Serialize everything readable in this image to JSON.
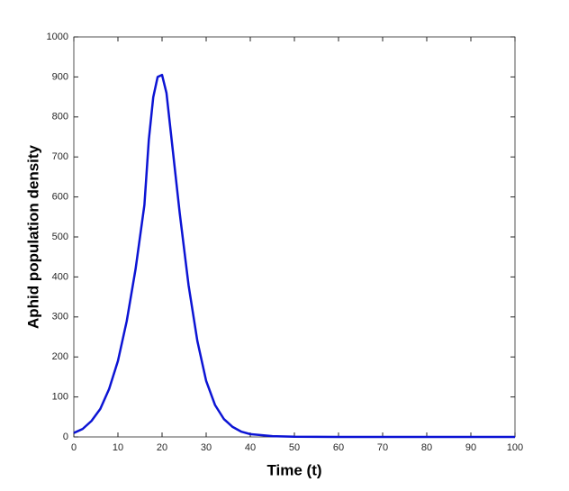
{
  "chart_data": {
    "type": "line",
    "x_label": "Time (t)",
    "y_label": "Aphid population density",
    "x": [
      0,
      2,
      4,
      6,
      8,
      10,
      12,
      14,
      16,
      17,
      18,
      19,
      20,
      21,
      22,
      24,
      26,
      28,
      30,
      32,
      34,
      36,
      38,
      40,
      45,
      50,
      60,
      70,
      80,
      90,
      100
    ],
    "series": [
      {
        "name": "Aphid population density",
        "color": "#0c14d4",
        "values": [
          10,
          20,
          40,
          70,
          120,
          190,
          290,
          420,
          580,
          743,
          849,
          900,
          905,
          860,
          760,
          560,
          380,
          240,
          140,
          80,
          45,
          25,
          13,
          7,
          2,
          0.5,
          0,
          0,
          0,
          0,
          0
        ]
      }
    ],
    "xlim": [
      0,
      100
    ],
    "xticks": [
      0,
      10,
      20,
      30,
      40,
      50,
      60,
      70,
      80,
      90,
      100
    ],
    "ylim": [
      0,
      1000
    ],
    "yticks": [
      0,
      100,
      200,
      300,
      400,
      500,
      600,
      700,
      800,
      900,
      1000
    ]
  }
}
